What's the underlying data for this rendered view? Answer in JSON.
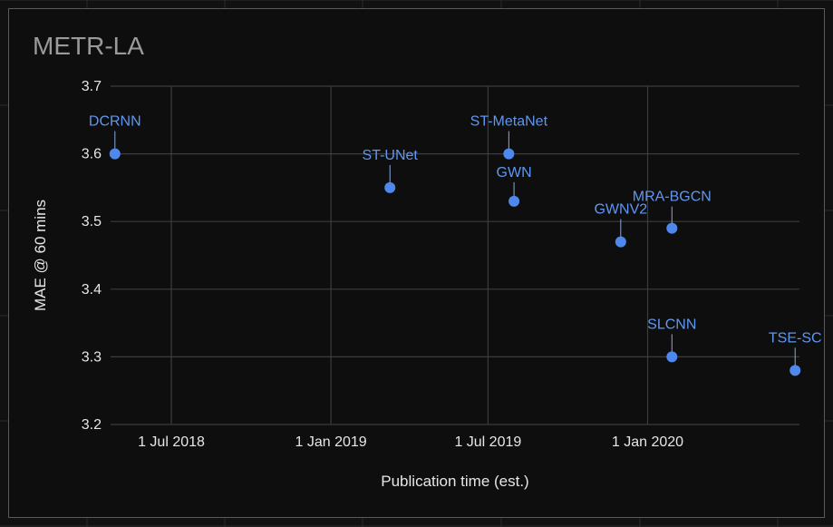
{
  "chart_data": {
    "type": "scatter",
    "title": "METR-LA",
    "xlabel": "Publication time (est.)",
    "ylabel": "MAE @ 60 mins",
    "ylim": [
      3.2,
      3.7
    ],
    "xlim": [
      "2018-04-22",
      "2020-06-24"
    ],
    "grid": true,
    "legend": "none",
    "x_ticks": [
      {
        "date": "2018-07-01",
        "label": "1 Jul 2018"
      },
      {
        "date": "2019-01-01",
        "label": "1 Jan 2019"
      },
      {
        "date": "2019-07-01",
        "label": "1 Jul 2019"
      },
      {
        "date": "2020-01-01",
        "label": "1 Jan 2020"
      }
    ],
    "y_ticks": [
      "3.2",
      "3.3",
      "3.4",
      "3.5",
      "3.6",
      "3.7"
    ],
    "points": [
      {
        "label": "DCRNN",
        "x": "2018-04-27",
        "y": 3.6
      },
      {
        "label": "ST-UNet",
        "x": "2019-03-10",
        "y": 3.55
      },
      {
        "label": "ST-MetaNet",
        "x": "2019-07-25",
        "y": 3.6
      },
      {
        "label": "GWN",
        "x": "2019-07-31",
        "y": 3.53
      },
      {
        "label": "GWNV2",
        "x": "2019-12-01",
        "y": 3.47
      },
      {
        "label": "MRA-BGCN",
        "x": "2020-01-29",
        "y": 3.49
      },
      {
        "label": "SLCNN",
        "x": "2020-01-29",
        "y": 3.3
      },
      {
        "label": "TSE-SC",
        "x": "2020-06-19",
        "y": 3.28
      }
    ],
    "colors": {
      "point": "#4f88ec",
      "label": "#5f97f2",
      "grid": "#3c3c3c",
      "text": "#e6e6e6",
      "title": "#9a9a9a"
    }
  }
}
